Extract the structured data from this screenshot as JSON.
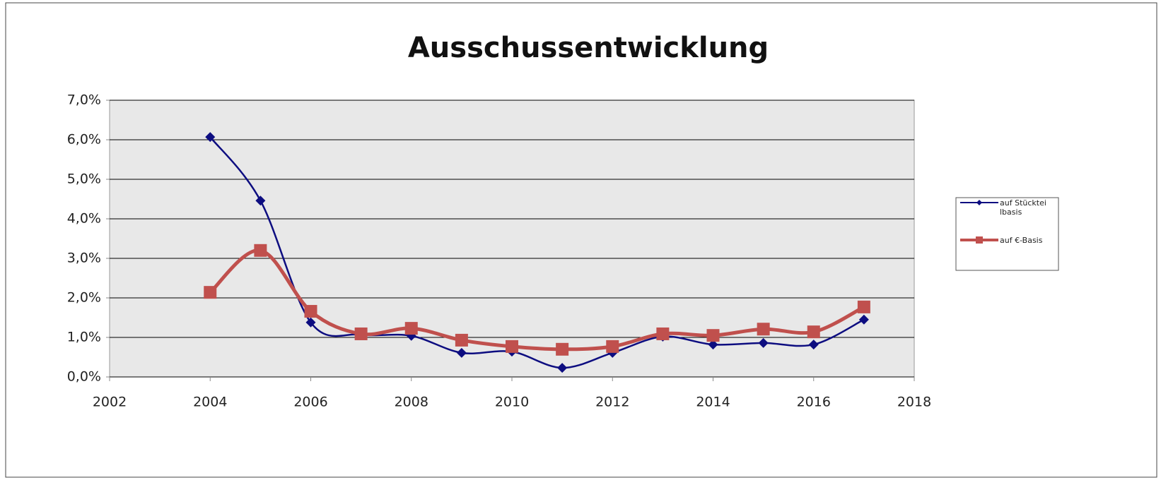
{
  "chart_data": {
    "type": "line",
    "title": "Ausschussentwicklung",
    "x": [
      2004,
      2005,
      2006,
      2007,
      2008,
      2009,
      2010,
      2011,
      2012,
      2013,
      2014,
      2015,
      2016,
      2017
    ],
    "series": [
      {
        "name": "auf Stückteilbasis",
        "color": "#0d0d80",
        "marker": "diamond",
        "values": [
          6.07,
          4.46,
          1.38,
          1.07,
          1.04,
          0.61,
          0.64,
          0.23,
          0.61,
          1.02,
          0.82,
          0.86,
          0.82,
          1.45
        ]
      },
      {
        "name": "auf €-Basis",
        "color": "#c0504d",
        "marker": "square",
        "values": [
          2.14,
          3.2,
          1.66,
          1.09,
          1.23,
          0.93,
          0.77,
          0.7,
          0.77,
          1.09,
          1.05,
          1.21,
          1.14,
          1.77
        ]
      }
    ],
    "xlim": [
      2002,
      2018
    ],
    "xticks": [
      2002,
      2004,
      2006,
      2008,
      2010,
      2012,
      2014,
      2016,
      2018
    ],
    "ylim": [
      0,
      7
    ],
    "yticks": [
      {
        "value": 0,
        "label": "0,0%"
      },
      {
        "value": 1,
        "label": "1,0%"
      },
      {
        "value": 2,
        "label": "2,0%"
      },
      {
        "value": 3,
        "label": "3,0%"
      },
      {
        "value": 4,
        "label": "4,0%"
      },
      {
        "value": 5,
        "label": "5,0%"
      },
      {
        "value": 6,
        "label": "6,0%"
      },
      {
        "value": 7,
        "label": "7,0%"
      }
    ],
    "grid": true,
    "smooth": true,
    "legend": "right"
  }
}
